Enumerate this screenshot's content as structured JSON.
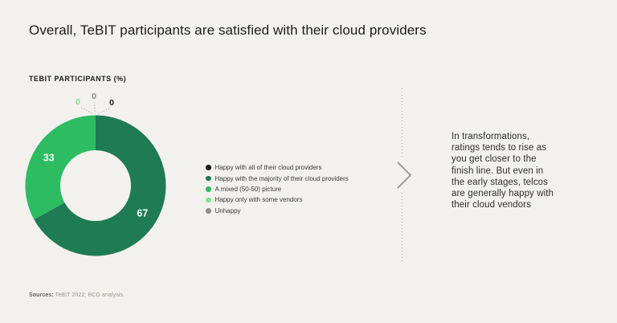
{
  "title": "Overall, TeBIT participants are satisfied with their cloud providers",
  "chart_label": "TEBIT PARTICIPANTS (%)",
  "chart_data": {
    "type": "pie",
    "donut": true,
    "title": "TEBIT PARTICIPANTS (%)",
    "unit": "%",
    "start_angle": "top",
    "direction": "clockwise",
    "categories": [
      "Happy with all of their cloud providers",
      "Happy with the majority of their cloud providers",
      "A mixed (50-50) picture",
      "Happy only with some vendors",
      "Unhappy"
    ],
    "values": [
      0,
      67,
      33,
      0,
      0
    ],
    "colors": [
      "#1c1c1a",
      "#1e7b53",
      "#2dbc61",
      "#7fe38c",
      "#8c8c8c"
    ],
    "legend_position": "right",
    "value_label_color": "#ffffff"
  },
  "annotation": {
    "text": "In transformations,\nratings tends to rise as\nyou get closer to the\nfinish line. But even in\nthe early stages, telcos\nare generally happy with\ntheir cloud vendors"
  },
  "chevron_icon": "›",
  "sources": {
    "label": "Sources:",
    "text": " TeBIT 2022; BCG analysis."
  },
  "palette": {
    "background": "#f2f1ee",
    "title_text": "#1d1d1b",
    "legend_text": "#3c3c3a",
    "divider": "#a8a7a2",
    "chevron": "#9b9b9b",
    "leader_line": "#999894"
  }
}
